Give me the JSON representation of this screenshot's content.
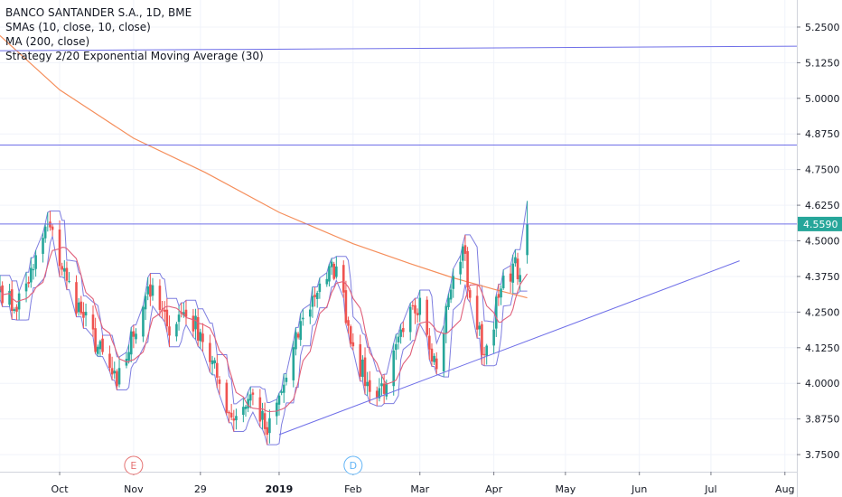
{
  "legend": {
    "title": "BANCO SANTANDER S.A., 1D, BME",
    "sma": "SMAs (10, close, 10, close)",
    "ma": "MA (200, close)",
    "strategy": "Strategy 2/20 Exponential Moving Average (30)"
  },
  "price_tag": "4.5590",
  "event_markers": [
    {
      "letter": "E",
      "date": "2018-11-01",
      "color": "#e57373"
    },
    {
      "letter": "D",
      "date": "2019-02-01",
      "color": "#64b5f6"
    }
  ],
  "colors": {
    "up": "#26a69a",
    "down": "#ef5350",
    "ma200": "#f58e5b",
    "sma10": "#e0607a",
    "envelope": "#7e7ee0",
    "hline": "#6f6fe8",
    "trend": "#6f6fe8",
    "tag": "#26a69a",
    "axis_text": "#131722",
    "grid": "#f0f3fa"
  },
  "chart_data": {
    "type": "candlestick",
    "symbol": "BANCO SANTANDER S.A.",
    "interval": "1D",
    "exchange": "BME",
    "x_tick_labels": [
      {
        "label": "Oct",
        "date": "2018-10-01"
      },
      {
        "label": "Nov",
        "date": "2018-11-01"
      },
      {
        "label": "29",
        "date": "2018-11-29"
      },
      {
        "label": "2019",
        "date": "2019-01-01"
      },
      {
        "label": "Feb",
        "date": "2019-02-01"
      },
      {
        "label": "Mar",
        "date": "2019-03-01"
      },
      {
        "label": "Apr",
        "date": "2019-04-01"
      },
      {
        "label": "May",
        "date": "2019-05-01"
      },
      {
        "label": "Jun",
        "date": "2019-06-01"
      },
      {
        "label": "Jul",
        "date": "2019-07-01"
      },
      {
        "label": "Aug",
        "date": "2019-08-01"
      }
    ],
    "y_tick_labels": [
      "5.2500",
      "5.1250",
      "5.0000",
      "4.8750",
      "4.7500",
      "4.6250",
      "4.5000",
      "4.3750",
      "4.2500",
      "4.1250",
      "4.0000",
      "3.8750",
      "3.7500"
    ],
    "x_range": [
      "2018-09-06",
      "2019-08-06"
    ],
    "y_range": [
      3.69,
      5.345
    ],
    "last_price": 4.559,
    "horizontal_lines": [
      5.175,
      4.836,
      4.559
    ],
    "trendline": {
      "from": {
        "date": "2019-01-01",
        "price": 3.82
      },
      "to": {
        "date": "2019-07-13",
        "price": 4.43
      }
    },
    "ma200_points": [
      {
        "date": "2018-09-06",
        "value": 5.22
      },
      {
        "date": "2018-10-01",
        "value": 5.03
      },
      {
        "date": "2018-11-01",
        "value": 4.86
      },
      {
        "date": "2018-12-01",
        "value": 4.74
      },
      {
        "date": "2019-01-01",
        "value": 4.6
      },
      {
        "date": "2019-02-01",
        "value": 4.49
      },
      {
        "date": "2019-02-25",
        "value": 4.42
      },
      {
        "date": "2019-03-15",
        "value": 4.37
      },
      {
        "date": "2019-04-01",
        "value": 4.33
      },
      {
        "date": "2019-04-15",
        "value": 4.3
      }
    ],
    "key_closes": [
      {
        "date": "2018-09-06",
        "close": 4.34
      },
      {
        "date": "2018-09-12",
        "close": 4.26
      },
      {
        "date": "2018-09-20",
        "close": 4.4
      },
      {
        "date": "2018-09-26",
        "close": 4.56
      },
      {
        "date": "2018-10-04",
        "close": 4.36
      },
      {
        "date": "2018-10-11",
        "close": 4.23
      },
      {
        "date": "2018-10-25",
        "close": 3.99
      },
      {
        "date": "2018-11-07",
        "close": 4.34
      },
      {
        "date": "2018-11-15",
        "close": 4.2
      },
      {
        "date": "2018-11-22",
        "close": 4.25
      },
      {
        "date": "2018-11-29",
        "close": 4.18
      },
      {
        "date": "2018-12-06",
        "close": 4.02
      },
      {
        "date": "2018-12-12",
        "close": 3.88
      },
      {
        "date": "2018-12-21",
        "close": 3.96
      },
      {
        "date": "2018-12-27",
        "close": 3.82
      },
      {
        "date": "2019-01-04",
        "close": 4.02
      },
      {
        "date": "2019-01-11",
        "close": 4.23
      },
      {
        "date": "2019-01-18",
        "close": 4.35
      },
      {
        "date": "2019-01-25",
        "close": 4.41
      },
      {
        "date": "2019-02-01",
        "close": 4.13
      },
      {
        "date": "2019-02-08",
        "close": 3.97
      },
      {
        "date": "2019-02-15",
        "close": 4.0
      },
      {
        "date": "2019-02-22",
        "close": 4.18
      },
      {
        "date": "2019-03-01",
        "close": 4.3
      },
      {
        "date": "2019-03-08",
        "close": 4.05
      },
      {
        "date": "2019-03-13",
        "close": 4.3
      },
      {
        "date": "2019-03-19",
        "close": 4.48
      },
      {
        "date": "2019-03-22",
        "close": 4.3
      },
      {
        "date": "2019-03-28",
        "close": 4.1
      },
      {
        "date": "2019-04-03",
        "close": 4.3
      },
      {
        "date": "2019-04-09",
        "close": 4.42
      },
      {
        "date": "2019-04-12",
        "close": 4.38
      },
      {
        "date": "2019-04-15",
        "close": 4.56
      }
    ]
  }
}
